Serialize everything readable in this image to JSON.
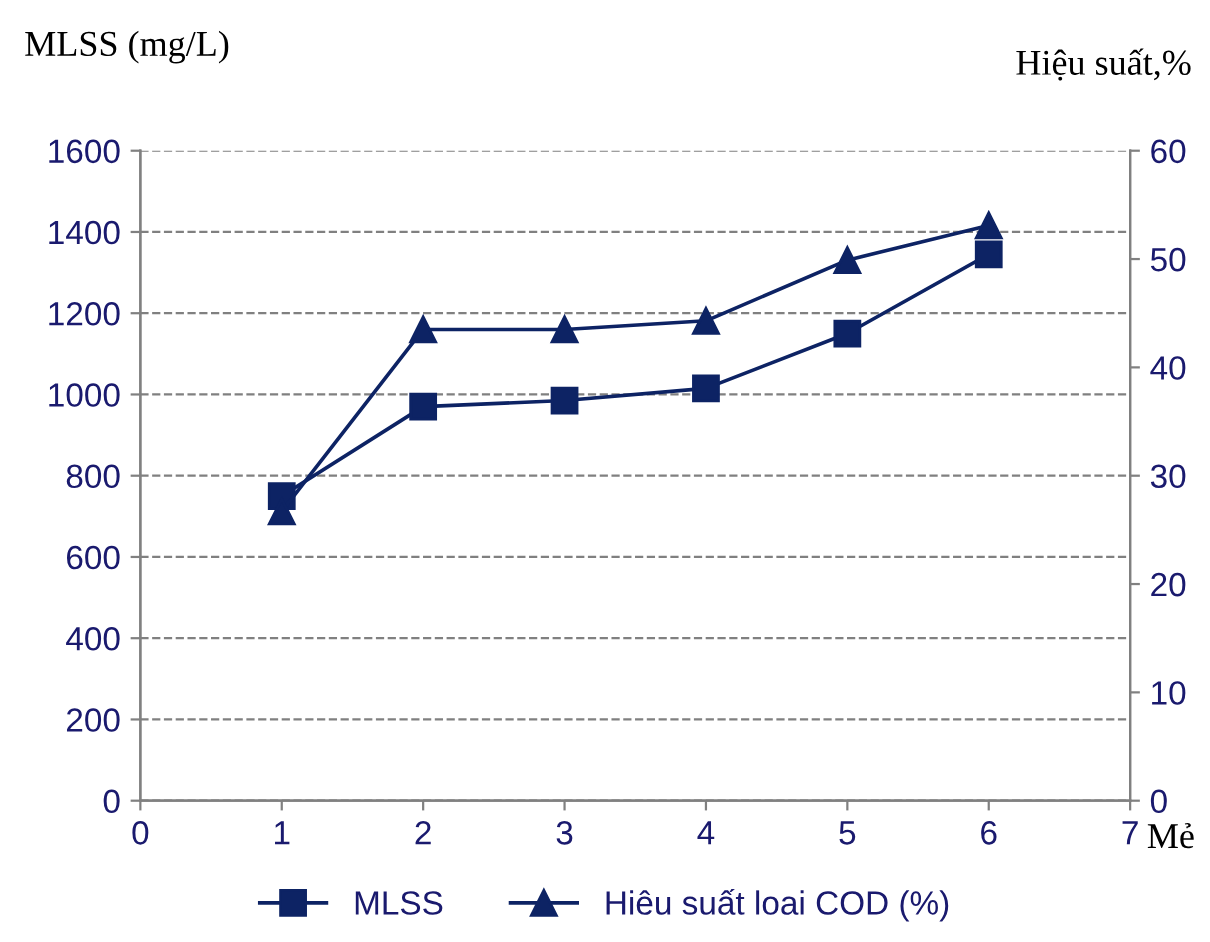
{
  "chart_data": {
    "type": "line",
    "ylabel": "MLSS (mg/L)",
    "y2label": "Hiệu suất,%",
    "xlabel": "Mẻ",
    "x": [
      1,
      2,
      3,
      4,
      5,
      6
    ],
    "series": [
      {
        "name": "MLSS",
        "color": "#0d2364",
        "marker": "square",
        "values": [
          750,
          970,
          985,
          1015,
          1150,
          1345
        ]
      },
      {
        "name": "Hiêu suất loai COD (%)",
        "color": "#0d2364",
        "marker": "triangle",
        "axis": "y2",
        "values": [
          26.7,
          43.5,
          43.5,
          44.3,
          49.9,
          53.1
        ]
      }
    ],
    "xlim": [
      0,
      7
    ],
    "xticks": [
      0,
      1,
      2,
      3,
      4,
      5,
      6,
      7
    ],
    "ylim": [
      0,
      1600
    ],
    "yticks": [
      0,
      200,
      400,
      600,
      800,
      1000,
      1200,
      1400,
      1600
    ],
    "y2lim": [
      0,
      60
    ],
    "y2ticks": [
      0,
      10,
      20,
      30,
      40,
      50,
      60
    ],
    "grid": "y",
    "legend": "bottom",
    "line_style": "solid"
  }
}
